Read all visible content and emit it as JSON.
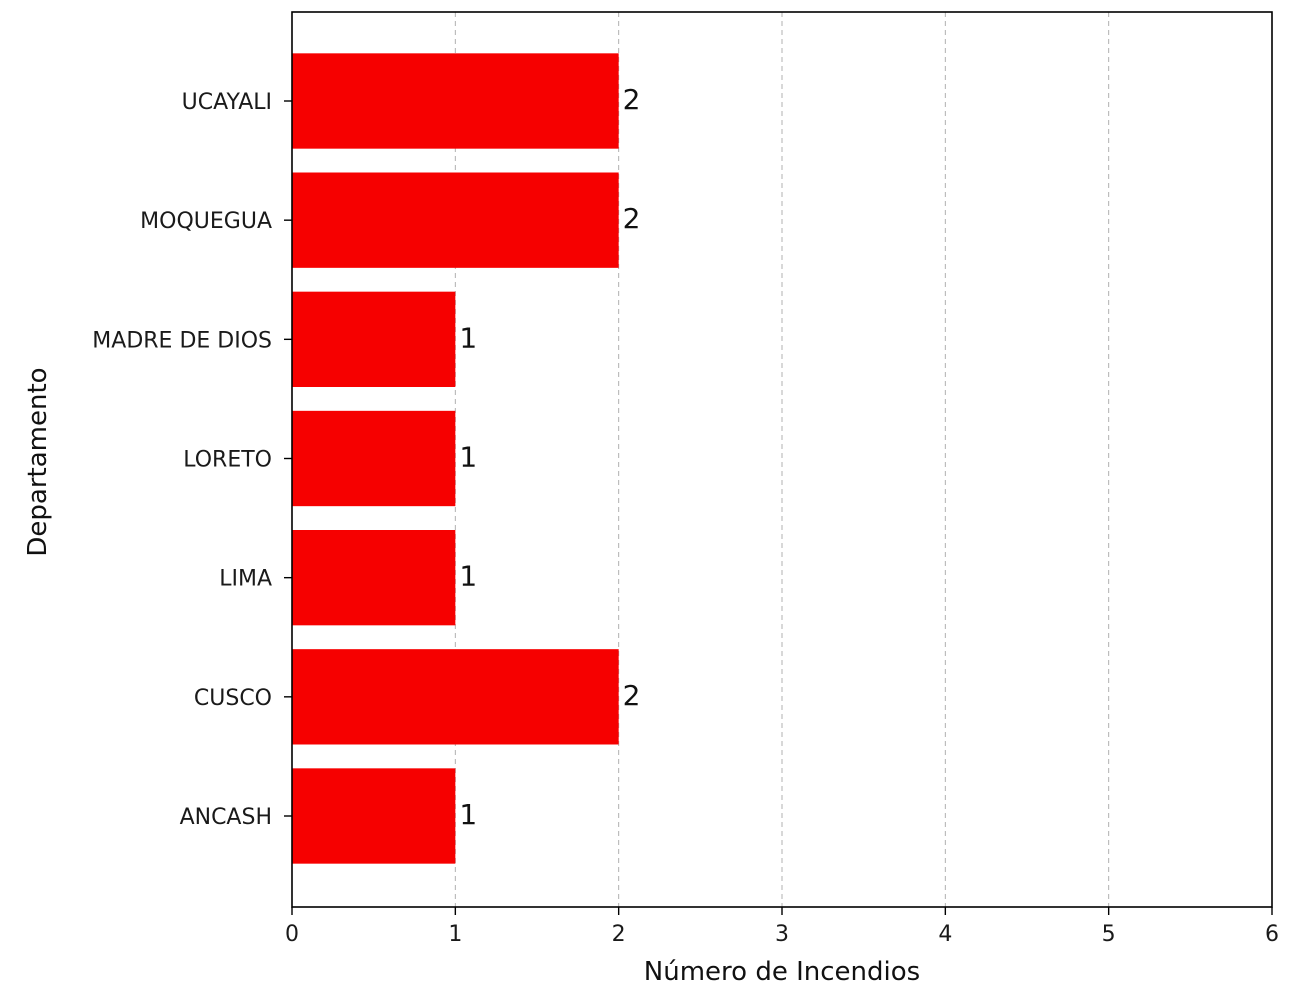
{
  "chart_data": {
    "type": "bar",
    "orientation": "horizontal",
    "title": "",
    "xlabel": "Número de Incendios",
    "ylabel": "Departamento",
    "categories": [
      "ANCASH",
      "CUSCO",
      "LIMA",
      "LORETO",
      "MADRE DE DIOS",
      "MOQUEGUA",
      "UCAYALI"
    ],
    "values": [
      1,
      2,
      1,
      1,
      1,
      2,
      2
    ],
    "value_labels": [
      "1",
      "2",
      "1",
      "1",
      "1",
      "2",
      "2"
    ],
    "xlim": [
      0,
      6
    ],
    "xticks": [
      "0",
      "1",
      "2",
      "3",
      "4",
      "5",
      "6"
    ],
    "grid": "vertical dashed",
    "legend": "none",
    "bar_color": "#f60000"
  }
}
